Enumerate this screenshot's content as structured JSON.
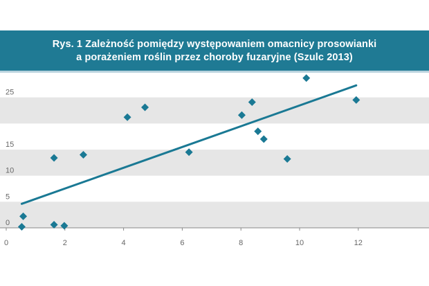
{
  "colors": {
    "banner": "#1f7a94",
    "title_text": "#ffffff",
    "band": "#e6e6e6",
    "series": "#1a7994",
    "trendline": "#1a7994",
    "tick_text": "#666666"
  },
  "chart_data": {
    "type": "scatter",
    "title": "Rys. 1 Zależność pomiędzy występowaniem omacnicy prosowianki",
    "subtitle": "a porażeniem roślin przez choroby fuzaryjne (Szulc 2013)",
    "x": [
      0.6,
      0.65,
      1.7,
      1.7,
      2.05,
      2.7,
      4.2,
      4.8,
      6.3,
      8.1,
      8.45,
      8.65,
      8.85,
      9.65,
      10.3,
      12.0
    ],
    "y": [
      0.2,
      2.2,
      0.6,
      13.4,
      0.4,
      14.0,
      21.2,
      23.1,
      14.5,
      21.6,
      24.1,
      18.5,
      17.0,
      13.2,
      28.7,
      24.5
    ],
    "xlim": [
      0,
      14
    ],
    "ylim": [
      0,
      30
    ],
    "x_ticks": [
      "0",
      "2",
      "4",
      "6",
      "8",
      "10",
      "12"
    ],
    "y_ticks": [
      "0",
      "5",
      "10",
      "15",
      "25"
    ],
    "trendline": {
      "x": [
        0.6,
        12.0
      ],
      "y": [
        4.6,
        27.3
      ]
    },
    "bands": [
      [
        0,
        5
      ],
      [
        10,
        15
      ],
      [
        20,
        25
      ]
    ],
    "grid": false,
    "legend": "none"
  }
}
